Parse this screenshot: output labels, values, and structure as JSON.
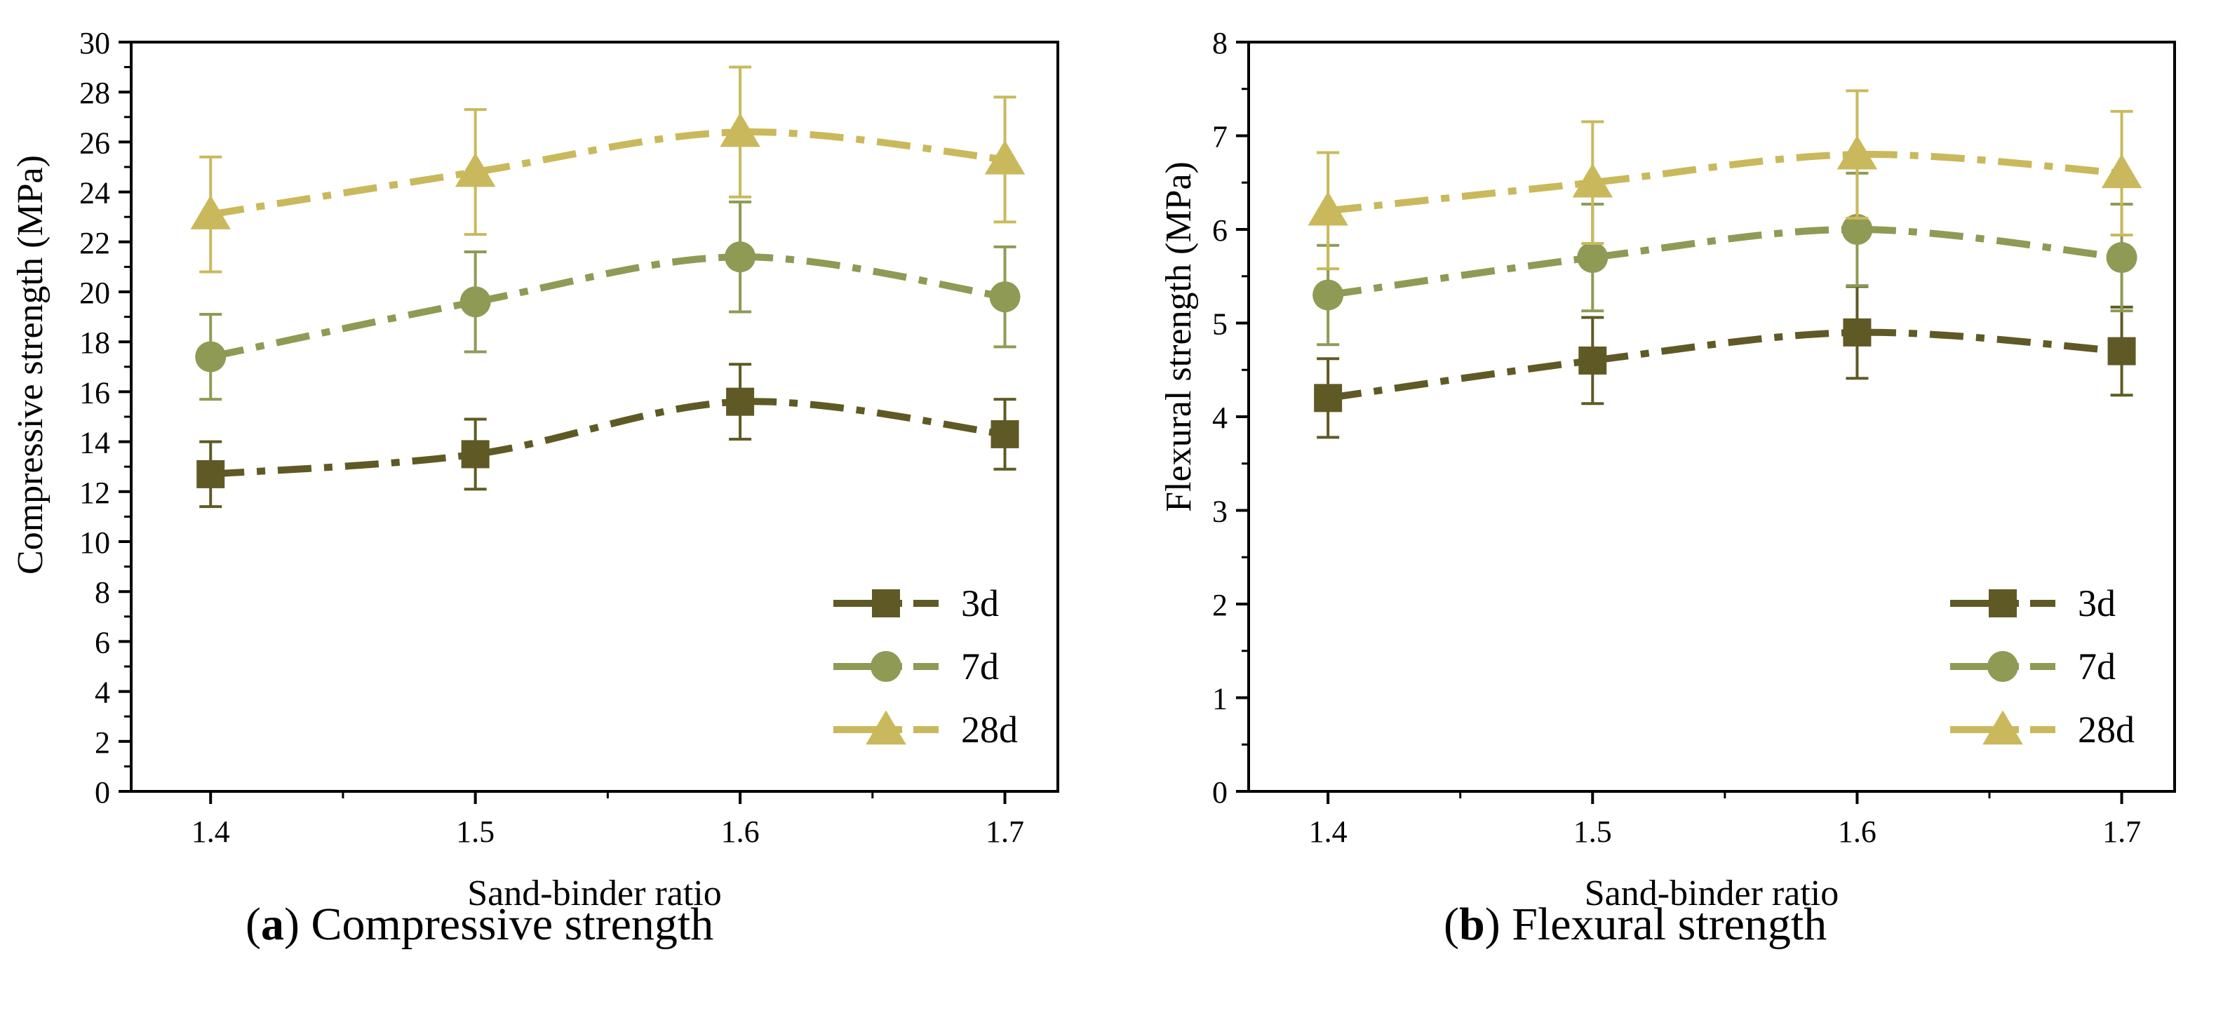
{
  "chart_data": [
    {
      "type": "line",
      "panel": "a",
      "caption_label": "a",
      "caption_text": "Compressive strength",
      "xlabel": "Sand-binder ratio",
      "ylabel": "Compressive strength (MPa)",
      "categories": [
        "1.4",
        "1.5",
        "1.6",
        "1.7"
      ],
      "xlim": [
        1.37,
        1.72
      ],
      "ylim": [
        0,
        30
      ],
      "y_ticks": [
        0,
        2,
        4,
        6,
        8,
        10,
        12,
        14,
        16,
        18,
        20,
        22,
        24,
        26,
        28,
        30
      ],
      "x": [
        1.4,
        1.5,
        1.6,
        1.7
      ],
      "legend_position": "bottom-right",
      "series": [
        {
          "name": "3d",
          "marker": "square",
          "color": "#5f5a25",
          "values": [
            12.7,
            13.5,
            15.6,
            14.3
          ],
          "errors": [
            1.3,
            1.4,
            1.5,
            1.4
          ]
        },
        {
          "name": "7d",
          "marker": "circle",
          "color": "#8f9a55",
          "values": [
            17.4,
            19.6,
            21.4,
            19.8
          ],
          "errors": [
            1.7,
            2.0,
            2.2,
            2.0
          ]
        },
        {
          "name": "28d",
          "marker": "triangle",
          "color": "#c9b95c",
          "values": [
            23.1,
            24.8,
            26.4,
            25.3
          ],
          "errors": [
            2.3,
            2.5,
            2.6,
            2.5
          ]
        }
      ]
    },
    {
      "type": "line",
      "panel": "b",
      "caption_label": "b",
      "caption_text": "Flexural strength",
      "xlabel": "Sand-binder ratio",
      "ylabel": "Flexural strength (MPa)",
      "categories": [
        "1.4",
        "1.5",
        "1.6",
        "1.7"
      ],
      "xlim": [
        1.37,
        1.72
      ],
      "ylim": [
        0,
        8
      ],
      "y_ticks": [
        0,
        1,
        2,
        3,
        4,
        5,
        6,
        7,
        8
      ],
      "x": [
        1.4,
        1.5,
        1.6,
        1.7
      ],
      "legend_position": "bottom-right",
      "series": [
        {
          "name": "3d",
          "marker": "square",
          "color": "#5f5a25",
          "values": [
            4.2,
            4.6,
            4.9,
            4.7
          ],
          "errors": [
            0.42,
            0.46,
            0.49,
            0.47
          ]
        },
        {
          "name": "7d",
          "marker": "circle",
          "color": "#8f9a55",
          "values": [
            5.3,
            5.7,
            6.0,
            5.7
          ],
          "errors": [
            0.53,
            0.57,
            0.6,
            0.57
          ]
        },
        {
          "name": "28d",
          "marker": "triangle",
          "color": "#c9b95c",
          "values": [
            6.2,
            6.5,
            6.8,
            6.6
          ],
          "errors": [
            0.62,
            0.65,
            0.68,
            0.66
          ]
        }
      ]
    }
  ]
}
